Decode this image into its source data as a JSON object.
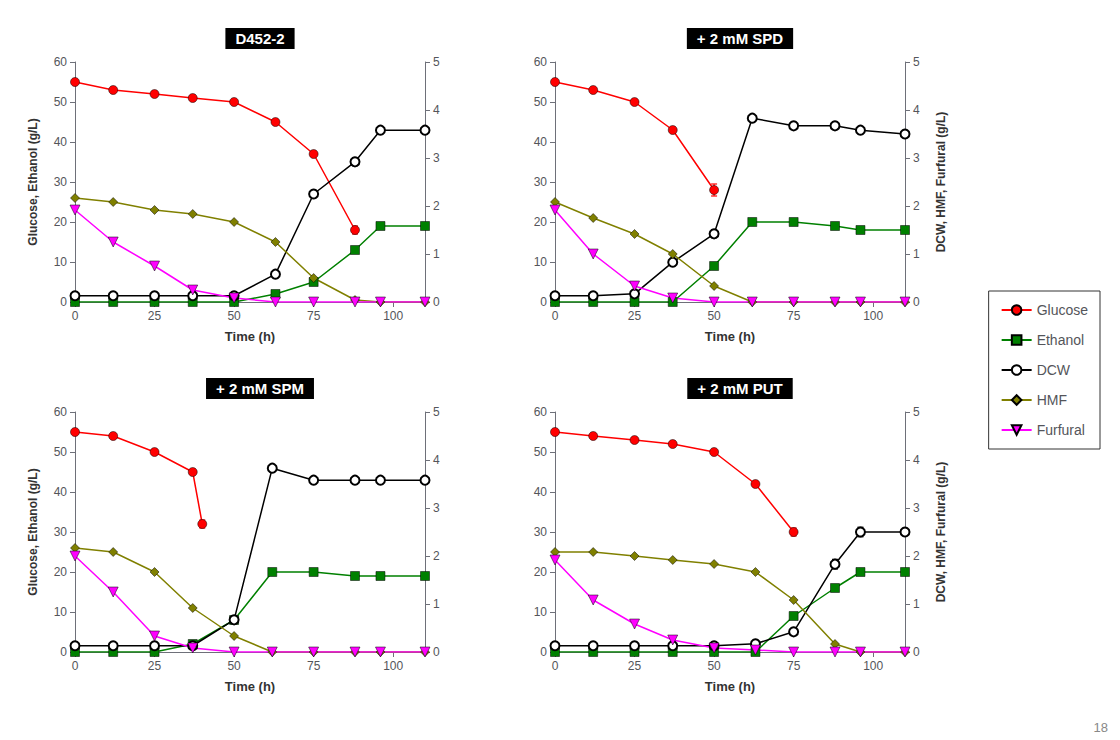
{
  "chart_data": [
    {
      "type": "line",
      "title": "D452-2",
      "xlabel": "Time (h)",
      "ylabel": "Glucose, Ethanol (g/L)",
      "xlim": [
        0,
        110
      ],
      "xticks": [
        0,
        25,
        50,
        75,
        100
      ],
      "ylim": [
        0,
        60
      ],
      "yticks": [
        0,
        10,
        20,
        30,
        40,
        50,
        60
      ],
      "y2lim": [
        0,
        5
      ],
      "y2ticks": [
        0,
        1,
        2,
        3,
        4,
        5
      ],
      "grid": false,
      "legend": "right",
      "series": [
        {
          "name": "Glucose",
          "color": "#FF0000",
          "marker": "circle",
          "x": [
            0,
            12,
            25,
            37,
            50,
            63,
            75,
            88
          ],
          "values": [
            55,
            53,
            52,
            51,
            50,
            45,
            37,
            18
          ],
          "errors": [
            0.5,
            0.5,
            0.5,
            0.5,
            0.5,
            0.5,
            0.5,
            1.0
          ]
        },
        {
          "name": "Ethanol",
          "color": "#008000",
          "marker": "square",
          "x": [
            0,
            12,
            25,
            37,
            50,
            63,
            75,
            88,
            96,
            110
          ],
          "values": [
            0,
            0,
            0,
            0,
            0,
            2,
            5,
            13,
            19,
            19
          ]
        },
        {
          "name": "DCW",
          "color": "#000000",
          "marker": "open_circle",
          "axis": "y2",
          "x": [
            0,
            12,
            25,
            37,
            50,
            63,
            75,
            88,
            96,
            110
          ],
          "values": [
            0.13,
            0.13,
            0.13,
            0.13,
            0.13,
            0.58,
            2.25,
            2.92,
            3.58,
            3.58
          ],
          "errors": [
            0.01,
            0.01,
            0.01,
            0.01,
            0.01,
            0.03,
            0.05,
            0.08,
            0.05,
            0.03
          ]
        },
        {
          "name": "HMF",
          "color": "#808000",
          "marker": "diamond",
          "x": [
            0,
            12,
            25,
            37,
            50,
            63,
            75,
            88,
            96,
            110
          ],
          "values": [
            26,
            25,
            23,
            22,
            20,
            15,
            6,
            0.5,
            0,
            0
          ]
        },
        {
          "name": "Furfural",
          "color": "#FF00FF",
          "marker": "triangle_down",
          "x": [
            0,
            12,
            25,
            37,
            50,
            63,
            75,
            88,
            96,
            110
          ],
          "values": [
            23,
            15,
            9,
            3,
            1,
            0,
            0,
            0,
            0,
            0
          ]
        }
      ]
    },
    {
      "type": "line",
      "title": "+ 2 mM SPD",
      "xlabel": "Time (h)",
      "y2label": "DCW, HMF, Furfural (g/L)",
      "xlim": [
        0,
        110
      ],
      "xticks": [
        0,
        25,
        50,
        75,
        100
      ],
      "ylim": [
        0,
        60
      ],
      "yticks": [
        0,
        10,
        20,
        30,
        40,
        50,
        60
      ],
      "y2lim": [
        0,
        5
      ],
      "y2ticks": [
        0,
        1,
        2,
        3,
        4,
        5
      ],
      "grid": false,
      "legend": "right",
      "series": [
        {
          "name": "Glucose",
          "color": "#FF0000",
          "marker": "circle",
          "x": [
            0,
            12,
            25,
            37,
            50
          ],
          "values": [
            55,
            53,
            50,
            43,
            28
          ],
          "errors": [
            0.5,
            0.5,
            0.5,
            0.5,
            1.5
          ]
        },
        {
          "name": "Ethanol",
          "color": "#008000",
          "marker": "square",
          "x": [
            0,
            12,
            25,
            37,
            50,
            62,
            75,
            88,
            96,
            110
          ],
          "values": [
            0,
            0,
            0,
            0,
            9,
            20,
            20,
            19,
            18,
            18
          ]
        },
        {
          "name": "DCW",
          "color": "#000000",
          "marker": "open_circle",
          "axis": "y2",
          "x": [
            0,
            12,
            25,
            37,
            50,
            62,
            75,
            88,
            96,
            110
          ],
          "values": [
            0.13,
            0.13,
            0.17,
            0.83,
            1.42,
            3.83,
            3.67,
            3.67,
            3.58,
            3.5
          ],
          "errors": [
            0.01,
            0.01,
            0.01,
            0.05,
            0.08,
            0.05,
            0.03,
            0.03,
            0.03,
            0.03
          ]
        },
        {
          "name": "HMF",
          "color": "#808000",
          "marker": "diamond",
          "x": [
            0,
            12,
            25,
            37,
            50,
            62,
            75,
            88,
            96,
            110
          ],
          "values": [
            25,
            21,
            17,
            12,
            4,
            0,
            0,
            0,
            0,
            0
          ]
        },
        {
          "name": "Furfural",
          "color": "#FF00FF",
          "marker": "triangle_down",
          "x": [
            0,
            12,
            25,
            37,
            50,
            62,
            75,
            88,
            96,
            110
          ],
          "values": [
            23,
            12,
            4,
            1,
            0,
            0,
            0,
            0,
            0,
            0
          ]
        }
      ]
    },
    {
      "type": "line",
      "title": "+ 2 mM SPM",
      "xlabel": "Time (h)",
      "ylabel": "Glucose, Ethanol (g/L)",
      "xlim": [
        0,
        110
      ],
      "xticks": [
        0,
        25,
        50,
        75,
        100
      ],
      "ylim": [
        0,
        60
      ],
      "yticks": [
        0,
        10,
        20,
        30,
        40,
        50,
        60
      ],
      "y2lim": [
        0,
        5
      ],
      "y2ticks": [
        0,
        1,
        2,
        3,
        4,
        5
      ],
      "grid": false,
      "legend": "right",
      "series": [
        {
          "name": "Glucose",
          "color": "#FF0000",
          "marker": "circle",
          "x": [
            0,
            12,
            25,
            37,
            40
          ],
          "values": [
            55,
            54,
            50,
            45,
            32
          ],
          "errors": [
            0.5,
            0.5,
            0.5,
            0.5,
            1.0
          ]
        },
        {
          "name": "Ethanol",
          "color": "#008000",
          "marker": "square",
          "x": [
            0,
            12,
            25,
            37,
            50,
            62,
            75,
            88,
            96,
            110
          ],
          "values": [
            0,
            0,
            0,
            2,
            8,
            20,
            20,
            19,
            19,
            19
          ]
        },
        {
          "name": "DCW",
          "color": "#000000",
          "marker": "open_circle",
          "axis": "y2",
          "x": [
            0,
            12,
            25,
            37,
            50,
            62,
            75,
            88,
            96,
            110
          ],
          "values": [
            0.13,
            0.13,
            0.13,
            0.13,
            0.67,
            3.83,
            3.58,
            3.58,
            3.58,
            3.58
          ],
          "errors": [
            0.01,
            0.01,
            0.01,
            0.01,
            0.05,
            0.05,
            0.03,
            0.03,
            0.03,
            0.03
          ]
        },
        {
          "name": "HMF",
          "color": "#808000",
          "marker": "diamond",
          "x": [
            0,
            12,
            25,
            37,
            50,
            62,
            75,
            88,
            96,
            110
          ],
          "values": [
            26,
            25,
            20,
            11,
            4,
            0,
            0,
            0,
            0,
            0
          ]
        },
        {
          "name": "Furfural",
          "color": "#FF00FF",
          "marker": "triangle_down",
          "x": [
            0,
            12,
            25,
            37,
            50,
            62,
            75,
            88,
            96,
            110
          ],
          "values": [
            24,
            15,
            4,
            1,
            0,
            0,
            0,
            0,
            0,
            0
          ]
        }
      ]
    },
    {
      "type": "line",
      "title": "+ 2 mM PUT",
      "xlabel": "Time (h)",
      "y2label": "DCW, HMF, Furfural (g/L)",
      "xlim": [
        0,
        110
      ],
      "xticks": [
        0,
        25,
        50,
        75,
        100
      ],
      "ylim": [
        0,
        60
      ],
      "yticks": [
        0,
        10,
        20,
        30,
        40,
        50,
        60
      ],
      "y2lim": [
        0,
        5
      ],
      "y2ticks": [
        0,
        1,
        2,
        3,
        4,
        5
      ],
      "grid": false,
      "legend": "right",
      "annotation": "18",
      "series": [
        {
          "name": "Glucose",
          "color": "#FF0000",
          "marker": "circle",
          "x": [
            0,
            12,
            25,
            37,
            50,
            63,
            75
          ],
          "values": [
            55,
            54,
            53,
            52,
            50,
            42,
            30
          ],
          "errors": [
            0.5,
            0.5,
            0.5,
            0.5,
            0.5,
            0.5,
            1.0
          ]
        },
        {
          "name": "Ethanol",
          "color": "#008000",
          "marker": "square",
          "x": [
            0,
            12,
            25,
            37,
            50,
            63,
            75,
            88,
            96,
            110
          ],
          "values": [
            0,
            0,
            0,
            0,
            0,
            0,
            9,
            16,
            20,
            20
          ]
        },
        {
          "name": "DCW",
          "color": "#000000",
          "marker": "open_circle",
          "axis": "y2",
          "x": [
            0,
            12,
            25,
            37,
            50,
            63,
            75,
            88,
            96,
            110
          ],
          "values": [
            0.13,
            0.13,
            0.13,
            0.13,
            0.13,
            0.17,
            0.42,
            1.83,
            2.5,
            2.5
          ],
          "errors": [
            0.01,
            0.01,
            0.01,
            0.01,
            0.01,
            0.01,
            0.03,
            0.1,
            0.1,
            0.05
          ]
        },
        {
          "name": "HMF",
          "color": "#808000",
          "marker": "diamond",
          "x": [
            0,
            12,
            25,
            37,
            50,
            63,
            75,
            88,
            96,
            110
          ],
          "values": [
            25,
            25,
            24,
            23,
            22,
            20,
            13,
            2,
            0,
            0
          ]
        },
        {
          "name": "Furfural",
          "color": "#FF00FF",
          "marker": "triangle_down",
          "x": [
            0,
            12,
            25,
            37,
            50,
            63,
            75,
            88,
            96,
            110
          ],
          "values": [
            23,
            13,
            7,
            3,
            1,
            0.5,
            0,
            0,
            0,
            0
          ]
        }
      ]
    }
  ]
}
